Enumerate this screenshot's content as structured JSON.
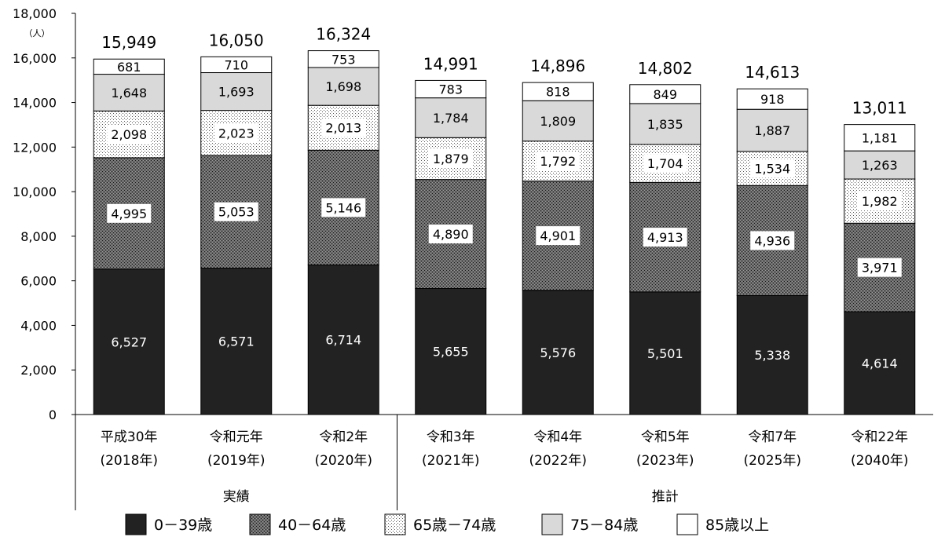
{
  "chart_data": {
    "type": "bar",
    "stacked": true,
    "unit_label": "（人）",
    "ylim": [
      0,
      18000
    ],
    "yticks": [
      "0",
      "2,000",
      "4,000",
      "6,000",
      "8,000",
      "10,000",
      "12,000",
      "14,000",
      "16,000",
      "18,000"
    ],
    "categories": [
      {
        "line1": "平成30年",
        "line2": "(2018年)"
      },
      {
        "line1": "令和元年",
        "line2": "(2019年)"
      },
      {
        "line1": "令和2年",
        "line2": "(2020年)"
      },
      {
        "line1": "令和3年",
        "line2": "(2021年)"
      },
      {
        "line1": "令和4年",
        "line2": "(2022年)"
      },
      {
        "line1": "令和5年",
        "line2": "(2023年)"
      },
      {
        "line1": "令和7年",
        "line2": "(2025年)"
      },
      {
        "line1": "令和22年",
        "line2": "(2040年)"
      }
    ],
    "groups": [
      {
        "label": "実績",
        "count": 3
      },
      {
        "label": "推計",
        "count": 5
      }
    ],
    "totals": [
      "15,949",
      "16,050",
      "16,324",
      "14,991",
      "14,896",
      "14,802",
      "14,613",
      "13,011"
    ],
    "series": [
      {
        "name": "0－39歳",
        "pattern": "solid-dark",
        "values": [
          6527,
          6571,
          6714,
          5655,
          5576,
          5501,
          5338,
          4614
        ],
        "labels": [
          "6,527",
          "6,571",
          "6,714",
          "5,655",
          "5,576",
          "5,501",
          "5,338",
          "4,614"
        ]
      },
      {
        "name": "40－64歳",
        "pattern": "dense-dots",
        "values": [
          4995,
          5053,
          5146,
          4890,
          4901,
          4913,
          4936,
          3971
        ],
        "labels": [
          "4,995",
          "5,053",
          "5,146",
          "4,890",
          "4,901",
          "4,913",
          "4,936",
          "3,971"
        ]
      },
      {
        "name": "65歳－74歳",
        "pattern": "light-dots",
        "values": [
          2098,
          2023,
          2013,
          1879,
          1792,
          1704,
          1534,
          1982
        ],
        "labels": [
          "2,098",
          "2,023",
          "2,013",
          "1,879",
          "1,792",
          "1,704",
          "1,534",
          "1,982"
        ]
      },
      {
        "name": "75－84歳",
        "pattern": "light-gray",
        "values": [
          1648,
          1693,
          1698,
          1784,
          1809,
          1835,
          1887,
          1263
        ],
        "labels": [
          "1,648",
          "1,693",
          "1,698",
          "1,784",
          "1,809",
          "1,835",
          "1,887",
          "1,263"
        ]
      },
      {
        "name": "85歳以上",
        "pattern": "white",
        "values": [
          681,
          710,
          753,
          783,
          818,
          849,
          918,
          1181
        ],
        "labels": [
          "681",
          "710",
          "753",
          "783",
          "818",
          "849",
          "918",
          "1,181"
        ]
      }
    ],
    "grid": false,
    "legend": "bottom",
    "colors": {
      "dark": "#222222",
      "gray": "#d9d9d9",
      "white": "#ffffff",
      "stroke": "#000000"
    }
  }
}
